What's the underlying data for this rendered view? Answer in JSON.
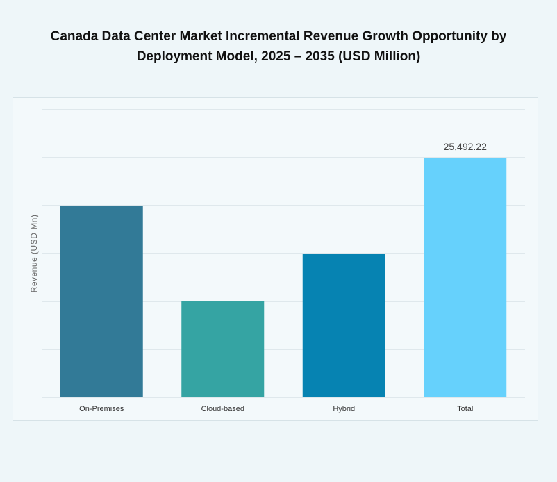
{
  "chart_data": {
    "type": "bar",
    "title": "Canada Data Center Market Incremental Revenue Growth Opportunity by Deployment Model, 2025 – 2035 (USD Million)",
    "title_lines": [
      "Canada Data Center Market Incremental Revenue Growth Opportunity by",
      "Deployment Model, 2025 – 2035 (USD Million)"
    ],
    "xlabel": "",
    "ylabel": "Revenue (USD Mn)",
    "categories": [
      "On-Premises",
      "Cloud-based",
      "Hybrid",
      "Total"
    ],
    "values": [
      20394,
      10197,
      15295,
      25492.22
    ],
    "data_labels": [
      "",
      "",
      "",
      "25,492.22"
    ],
    "colors": [
      "#327a97",
      "#35a4a3",
      "#0683b2",
      "#66d1fc"
    ],
    "ylim": [
      0,
      30590.66
    ],
    "y_ticks_shown": false,
    "grid": true,
    "legend": "none"
  }
}
